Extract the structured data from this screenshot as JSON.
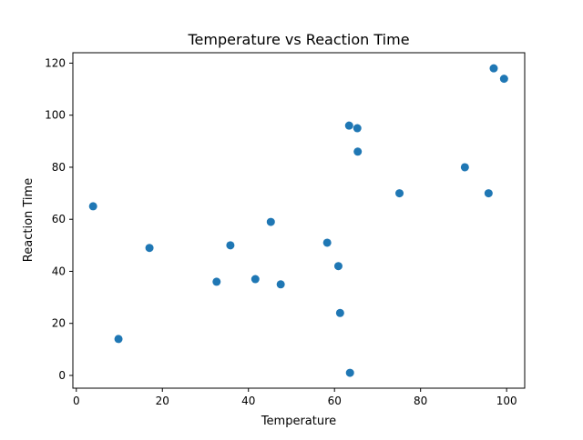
{
  "chart_data": {
    "type": "scatter",
    "title": "Temperature vs Reaction Time",
    "xlabel": "Temperature",
    "ylabel": "Reaction Time",
    "xlim": [
      -0.8,
      104.2
    ],
    "ylim": [
      -4.9,
      124
    ],
    "x_ticks": [
      0,
      20,
      40,
      60,
      80,
      100
    ],
    "y_ticks": [
      0,
      20,
      40,
      60,
      80,
      100,
      120
    ],
    "grid": false,
    "legend": "none",
    "marker_color": "#1f77b4",
    "series": [
      {
        "points": [
          {
            "x": 3.9,
            "y": 65
          },
          {
            "x": 9.8,
            "y": 14
          },
          {
            "x": 17.0,
            "y": 49
          },
          {
            "x": 32.6,
            "y": 36
          },
          {
            "x": 35.8,
            "y": 50
          },
          {
            "x": 41.6,
            "y": 37
          },
          {
            "x": 45.2,
            "y": 59
          },
          {
            "x": 47.5,
            "y": 35
          },
          {
            "x": 58.3,
            "y": 51
          },
          {
            "x": 60.9,
            "y": 42
          },
          {
            "x": 61.3,
            "y": 24
          },
          {
            "x": 63.4,
            "y": 96
          },
          {
            "x": 63.6,
            "y": 1
          },
          {
            "x": 65.3,
            "y": 95
          },
          {
            "x": 65.4,
            "y": 86
          },
          {
            "x": 75.1,
            "y": 70
          },
          {
            "x": 90.3,
            "y": 80
          },
          {
            "x": 95.8,
            "y": 70
          },
          {
            "x": 97.0,
            "y": 118
          },
          {
            "x": 99.4,
            "y": 114
          }
        ]
      }
    ]
  }
}
